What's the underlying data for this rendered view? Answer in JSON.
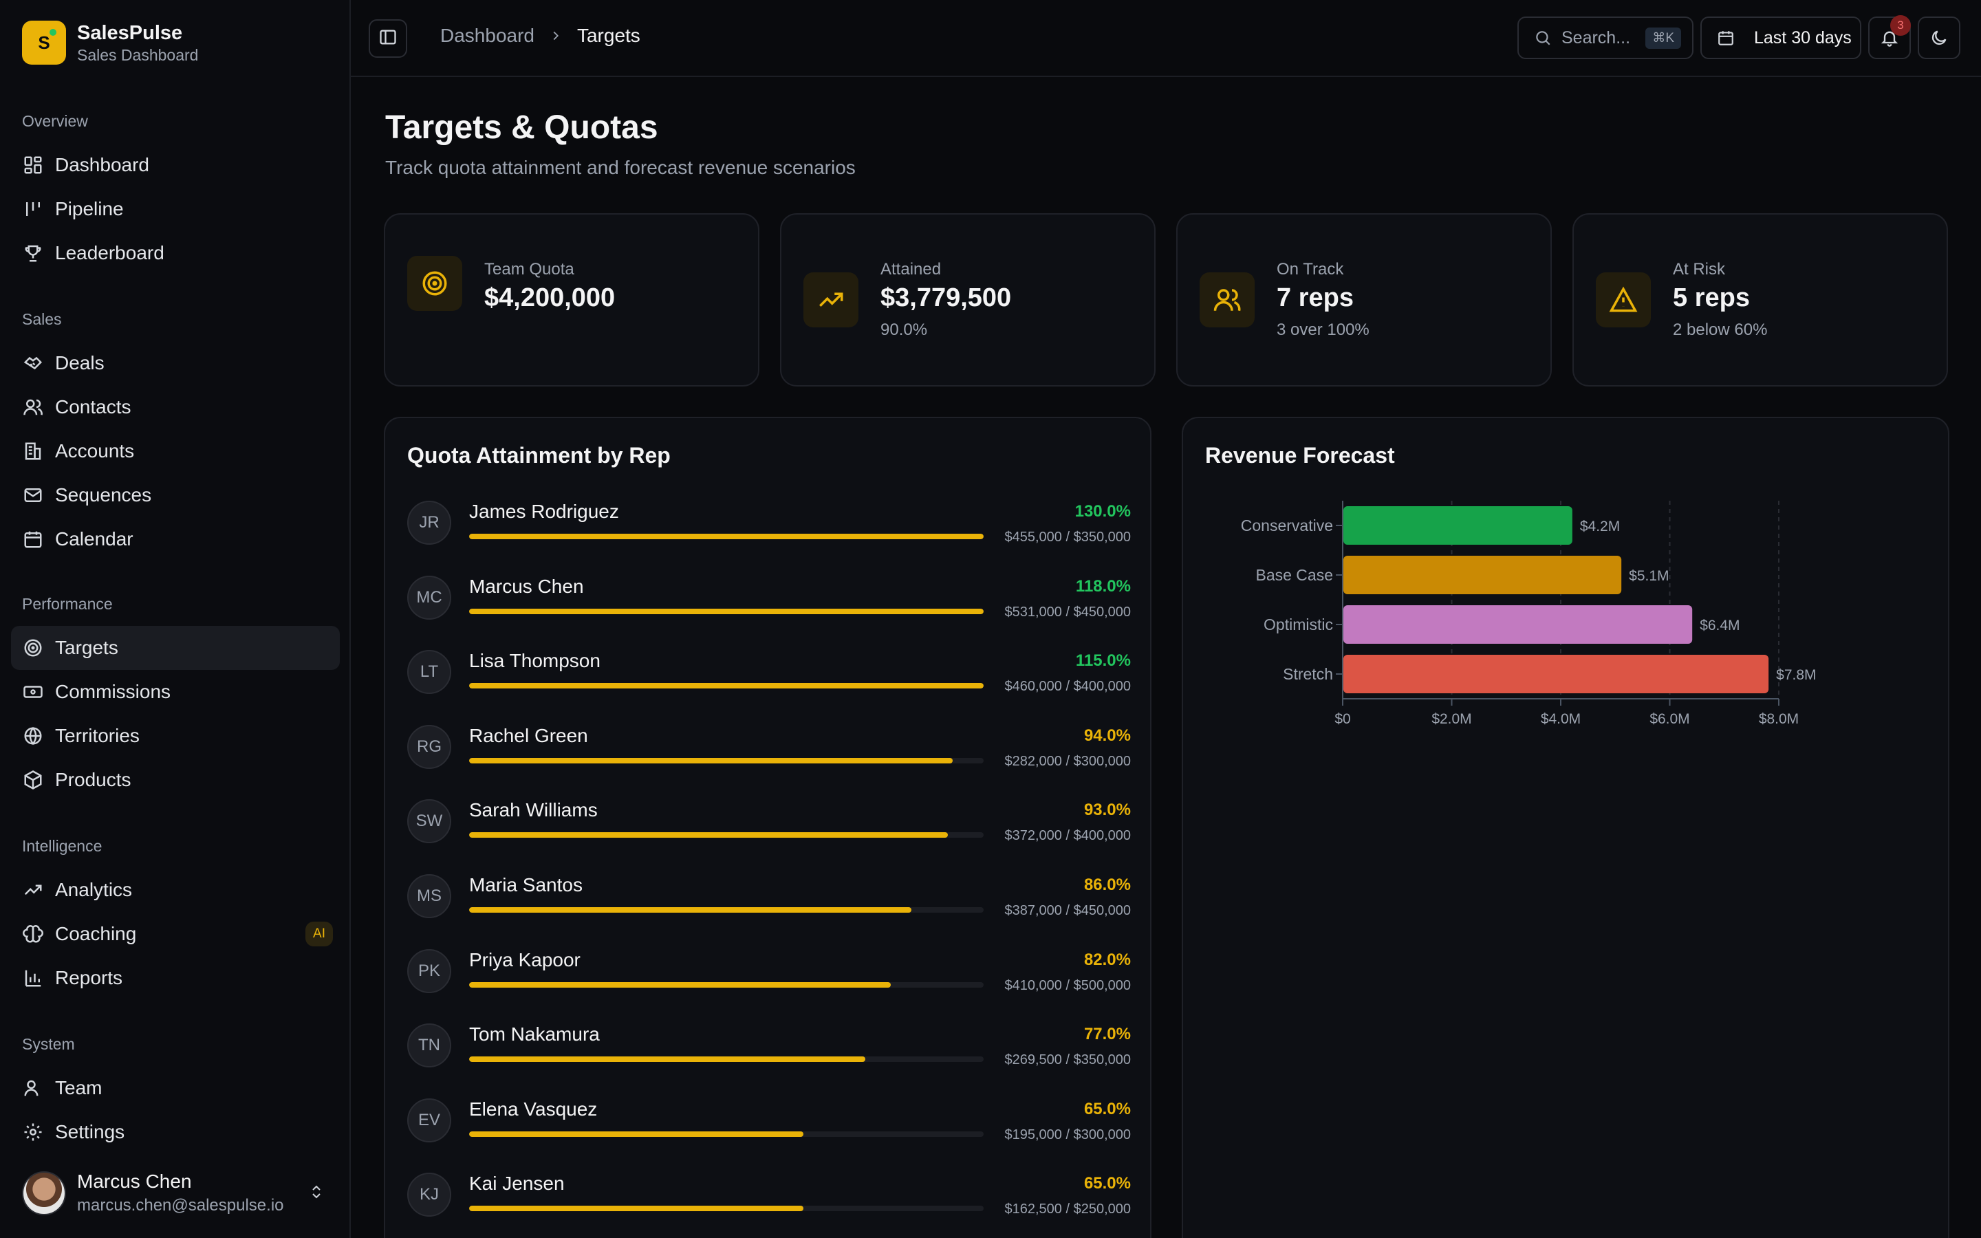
{
  "brand": {
    "logo_letter": "S",
    "name": "SalesPulse",
    "subtitle": "Sales Dashboard"
  },
  "sidebar": {
    "sections": [
      {
        "title": "Overview",
        "items": [
          {
            "label": "Dashboard",
            "icon": "layout-grid-icon"
          },
          {
            "label": "Pipeline",
            "icon": "pipeline-icon"
          },
          {
            "label": "Leaderboard",
            "icon": "trophy-icon"
          }
        ]
      },
      {
        "title": "Sales",
        "items": [
          {
            "label": "Deals",
            "icon": "handshake-icon"
          },
          {
            "label": "Contacts",
            "icon": "users-icon"
          },
          {
            "label": "Accounts",
            "icon": "building-icon"
          },
          {
            "label": "Sequences",
            "icon": "mail-icon"
          },
          {
            "label": "Calendar",
            "icon": "calendar-icon"
          }
        ]
      },
      {
        "title": "Performance",
        "items": [
          {
            "label": "Targets",
            "icon": "target-icon",
            "active": true
          },
          {
            "label": "Commissions",
            "icon": "banknote-icon"
          },
          {
            "label": "Territories",
            "icon": "globe-icon"
          },
          {
            "label": "Products",
            "icon": "package-icon"
          }
        ]
      },
      {
        "title": "Intelligence",
        "items": [
          {
            "label": "Analytics",
            "icon": "trending-up-icon"
          },
          {
            "label": "Coaching",
            "icon": "brain-icon",
            "badge": "AI"
          },
          {
            "label": "Reports",
            "icon": "bar-chart-icon"
          }
        ]
      },
      {
        "title": "System",
        "items": [
          {
            "label": "Team",
            "icon": "user-icon"
          },
          {
            "label": "Settings",
            "icon": "gear-icon"
          }
        ]
      }
    ],
    "user": {
      "name": "Marcus Chen",
      "email": "marcus.chen@salespulse.io"
    }
  },
  "header": {
    "breadcrumb": [
      "Dashboard",
      "Targets"
    ],
    "search_placeholder": "Search...",
    "search_shortcut": "⌘K",
    "date_range": "Last 30 days",
    "notification_count": "3"
  },
  "page": {
    "title": "Targets & Quotas",
    "subtitle": "Track quota attainment and forecast revenue scenarios"
  },
  "kpis": [
    {
      "label": "Team Quota",
      "value": "$4,200,000",
      "sub": "",
      "icon": "target-icon"
    },
    {
      "label": "Attained",
      "value": "$3,779,500",
      "sub": "90.0%",
      "icon": "trending-up-icon"
    },
    {
      "label": "On Track",
      "value": "7 reps",
      "sub": "3 over 100%",
      "icon": "users-icon"
    },
    {
      "label": "At Risk",
      "value": "5 reps",
      "sub": "2 below 60%",
      "icon": "alert-triangle-icon"
    }
  ],
  "quota_panel": {
    "title": "Quota Attainment by Rep",
    "reps": [
      {
        "initials": "JR",
        "name": "James Rodriguez",
        "pct": "130.0%",
        "amount": "$455,000 / $350,000",
        "fill": 1.0,
        "over": true
      },
      {
        "initials": "MC",
        "name": "Marcus Chen",
        "pct": "118.0%",
        "amount": "$531,000 / $450,000",
        "fill": 1.0,
        "over": true
      },
      {
        "initials": "LT",
        "name": "Lisa Thompson",
        "pct": "115.0%",
        "amount": "$460,000 / $400,000",
        "fill": 1.0,
        "over": true
      },
      {
        "initials": "RG",
        "name": "Rachel Green",
        "pct": "94.0%",
        "amount": "$282,000 / $300,000",
        "fill": 0.94,
        "over": false
      },
      {
        "initials": "SW",
        "name": "Sarah Williams",
        "pct": "93.0%",
        "amount": "$372,000 / $400,000",
        "fill": 0.93,
        "over": false
      },
      {
        "initials": "MS",
        "name": "Maria Santos",
        "pct": "86.0%",
        "amount": "$387,000 / $450,000",
        "fill": 0.86,
        "over": false
      },
      {
        "initials": "PK",
        "name": "Priya Kapoor",
        "pct": "82.0%",
        "amount": "$410,000 / $500,000",
        "fill": 0.82,
        "over": false
      },
      {
        "initials": "TN",
        "name": "Tom Nakamura",
        "pct": "77.0%",
        "amount": "$269,500 / $350,000",
        "fill": 0.77,
        "over": false
      },
      {
        "initials": "EV",
        "name": "Elena Vasquez",
        "pct": "65.0%",
        "amount": "$195,000 / $300,000",
        "fill": 0.65,
        "over": false
      },
      {
        "initials": "KJ",
        "name": "Kai Jensen",
        "pct": "65.0%",
        "amount": "$162,500 / $250,000",
        "fill": 0.65,
        "over": false
      }
    ]
  },
  "forecast_panel": {
    "title": "Revenue Forecast"
  },
  "chart_data": {
    "type": "bar",
    "orientation": "horizontal",
    "title": "Revenue Forecast",
    "categories": [
      "Conservative",
      "Base Case",
      "Optimistic",
      "Stretch"
    ],
    "values": [
      4.2,
      5.1,
      6.4,
      7.8
    ],
    "value_labels": [
      "$4.2M",
      "$5.1M",
      "$6.4M",
      "$7.8M"
    ],
    "colors": [
      "#16a34a",
      "#ca8a04",
      "#c27ac0",
      "#dc5545"
    ],
    "xlim": [
      0,
      8
    ],
    "x_ticks": [
      0,
      2,
      4,
      6,
      8
    ],
    "x_tick_labels": [
      "$0",
      "$2.0M",
      "$4.0M",
      "$6.0M",
      "$8.0M"
    ],
    "grid": "vertical dashed"
  },
  "colors": {
    "accent": "#eab308",
    "success": "#22c55e",
    "background": "#090a0d"
  }
}
